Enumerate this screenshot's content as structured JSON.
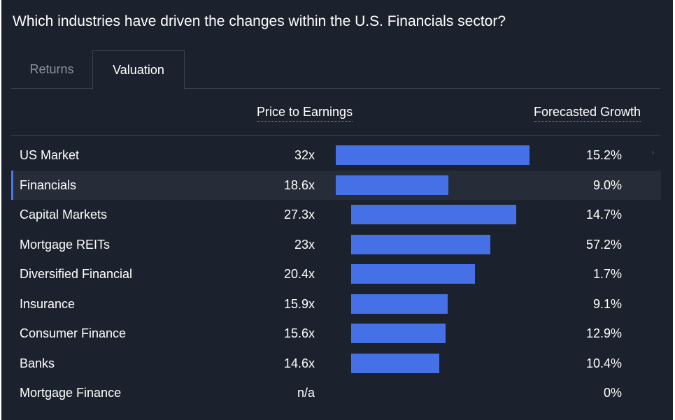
{
  "header": {
    "title": "Which industries have driven the changes within the U.S. Financials sector?"
  },
  "tabs": [
    {
      "label": "Returns",
      "active": false
    },
    {
      "label": "Valuation",
      "active": true
    }
  ],
  "columns": {
    "pe": "Price to Earnings",
    "growth": "Forecasted Growth"
  },
  "rows": [
    {
      "name": "US Market",
      "pe": "32x",
      "growth": "15.2%"
    },
    {
      "name": "Financials",
      "pe": "18.6x",
      "growth": "9.0%"
    },
    {
      "name": "Capital Markets",
      "pe": "27.3x",
      "growth": "14.7%"
    },
    {
      "name": "Mortgage REITs",
      "pe": "23x",
      "growth": "57.2%"
    },
    {
      "name": "Diversified Financial",
      "pe": "20.4x",
      "growth": "1.7%"
    },
    {
      "name": "Insurance",
      "pe": "15.9x",
      "growth": "9.1%"
    },
    {
      "name": "Consumer Finance",
      "pe": "15.6x",
      "growth": "12.9%"
    },
    {
      "name": "Banks",
      "pe": "14.6x",
      "growth": "10.4%"
    },
    {
      "name": "Mortgage Finance",
      "pe": "n/a",
      "growth": "0%"
    }
  ],
  "chart_data": {
    "type": "bar",
    "categories": [
      "US Market",
      "Financials",
      "Capital Markets",
      "Mortgage REITs",
      "Diversified Financial",
      "Insurance",
      "Consumer Finance",
      "Banks",
      "Mortgage Finance"
    ],
    "values": [
      32,
      18.6,
      27.3,
      23,
      20.4,
      15.9,
      15.6,
      14.6,
      null
    ],
    "xlabel": "Price to Earnings"
  },
  "colors": {
    "background": "#1b222d",
    "bar": "#4671e6",
    "highlight_row": "#262d38",
    "accent": "#4b78e0"
  },
  "icons": {
    "row_chevron": "chevron-right-icon"
  }
}
